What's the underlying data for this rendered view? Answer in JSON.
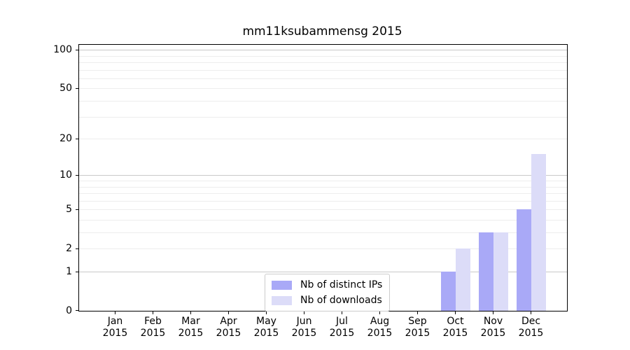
{
  "figure": {
    "title": "mm11ksubammensg 2015"
  },
  "chart_data": {
    "type": "bar",
    "title": "mm11ksubammensg 2015",
    "categories": [
      "Jan 2015",
      "Feb 2015",
      "Mar 2015",
      "Apr 2015",
      "May 2015",
      "Jun 2015",
      "Jul 2015",
      "Aug 2015",
      "Sep 2015",
      "Oct 2015",
      "Nov 2015",
      "Dec 2015"
    ],
    "series": [
      {
        "name": "Nb of distinct IPs",
        "color": "#a9a9f7",
        "values": [
          0,
          0,
          0,
          0,
          0,
          0,
          0,
          0,
          0,
          1,
          3,
          5
        ]
      },
      {
        "name": "Nb of downloads",
        "color": "#dcdcf8",
        "values": [
          0,
          0,
          0,
          0,
          0,
          0,
          0,
          0,
          0,
          2,
          3,
          15
        ]
      }
    ],
    "y_ticks": [
      100,
      50,
      20,
      10,
      5,
      2,
      1,
      0
    ],
    "yscale": "log10(1+y)",
    "ylim": [
      0,
      110
    ],
    "grid": "horizontal",
    "legend_position": "lower center",
    "colors": {
      "major_gridline": "#c8c8c8",
      "minor_gridline": "#ededed",
      "axis": "#000000"
    }
  }
}
